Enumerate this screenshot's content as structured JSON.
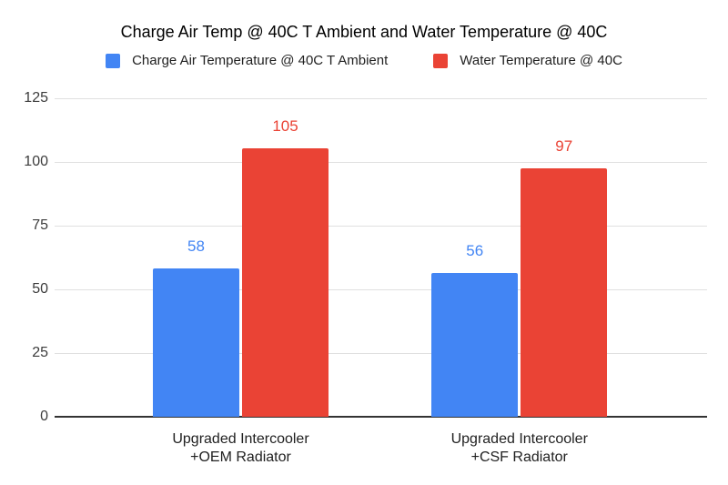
{
  "title": "Charge Air Temp @ 40C T Ambient and Water Temperature @ 40C",
  "chart_data": {
    "type": "bar",
    "title": "Charge Air Temp @ 40C T Ambient and Water Temperature @ 40C",
    "categories": [
      [
        "Upgraded Intercooler",
        "+OEM Radiator"
      ],
      [
        "Upgraded Intercooler",
        "+CSF Radiator"
      ]
    ],
    "series": [
      {
        "name": "Charge Air Temperature @ 40C T Ambient",
        "color": "#4285F4",
        "values": [
          58,
          56
        ]
      },
      {
        "name": "Water Temperature @ 40C",
        "color": "#EA4335",
        "values": [
          105,
          97
        ]
      }
    ],
    "y_ticks": [
      0,
      25,
      50,
      75,
      100,
      125
    ],
    "ylim": [
      0,
      125
    ],
    "grid": true,
    "legend_position": "top",
    "value_labels": true,
    "axis_color": "#333333",
    "gridline_color": "#e0e0e0",
    "background_color": "#ffffff"
  }
}
